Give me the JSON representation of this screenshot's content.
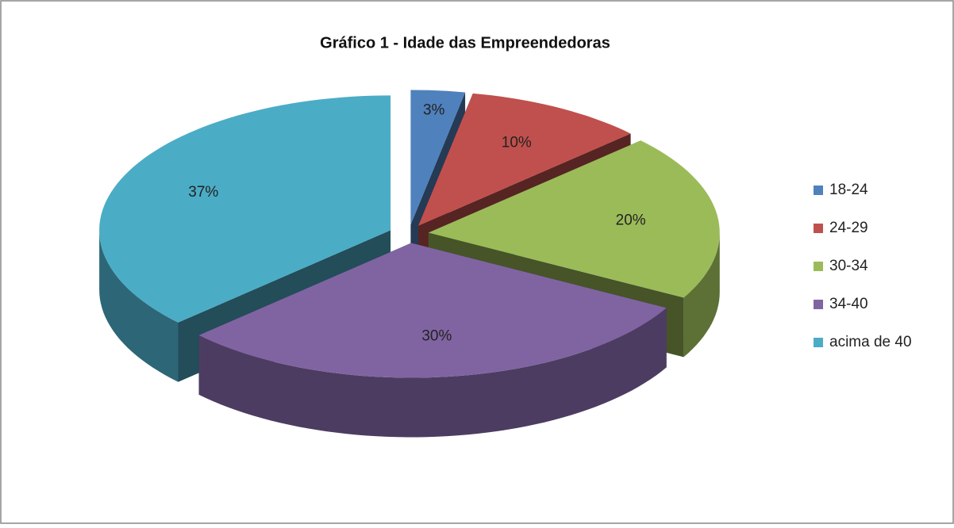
{
  "chart_data": {
    "type": "pie3d",
    "title": "Gráfico 1 - Idade das Empreendedoras",
    "categories": [
      "18-24",
      "24-29",
      "30-34",
      "34-40",
      "acima de 40"
    ],
    "values": [
      3,
      10,
      20,
      30,
      37
    ],
    "value_labels": [
      "3%",
      "10%",
      "20%",
      "30%",
      "37%"
    ],
    "colors": [
      "#4f81bd",
      "#c0504d",
      "#9bbb59",
      "#8064a2",
      "#4bacc6"
    ],
    "legend": "right"
  }
}
